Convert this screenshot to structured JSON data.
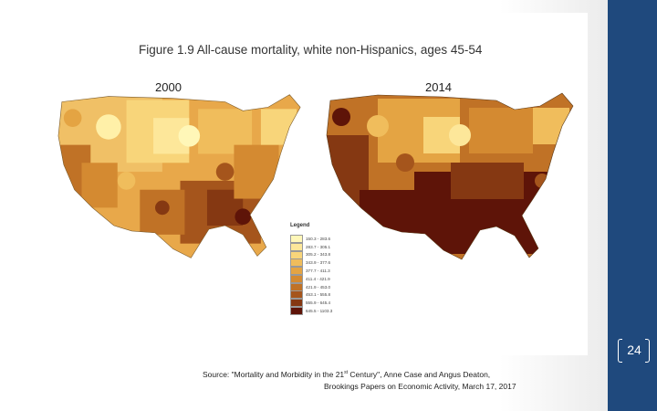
{
  "slide": {
    "figure_title": "Figure 1.9  All-cause mortality, white non-Hispanics, ages 45-54",
    "slide_number": "24",
    "source_line1_pre": "Source: \"Mortality and Morbidity in the 21",
    "source_line1_sup": "st",
    "source_line1_post": " Century\", Anne Case and Angus Deaton,",
    "source_line2": "Brookings Papers on Economic Activity, March 17, 2017",
    "colors": {
      "accent_band": "#1f497d"
    }
  },
  "maps": [
    {
      "year": "2000",
      "name": "map-2000"
    },
    {
      "year": "2014",
      "name": "map-2014"
    }
  ],
  "legend": {
    "title": "Legend",
    "items": [
      {
        "label": "150.3 - 283.6",
        "color": "#fff7b8"
      },
      {
        "label": "283.7 - 305.1",
        "color": "#fde79a"
      },
      {
        "label": "305.2 - 343.8",
        "color": "#f8d57a"
      },
      {
        "label": "343.9 - 377.6",
        "color": "#f0bd5c"
      },
      {
        "label": "377.7 - 411.3",
        "color": "#e4a443"
      },
      {
        "label": "411.4 - 421.9",
        "color": "#d48a31"
      },
      {
        "label": "421.9 - 453.0",
        "color": "#c07226"
      },
      {
        "label": "453.1 - 555.8",
        "color": "#a5551c"
      },
      {
        "label": "555.9 - 645.4",
        "color": "#853812"
      },
      {
        "label": "645.5 - 1103.3",
        "color": "#5e1408"
      }
    ]
  }
}
